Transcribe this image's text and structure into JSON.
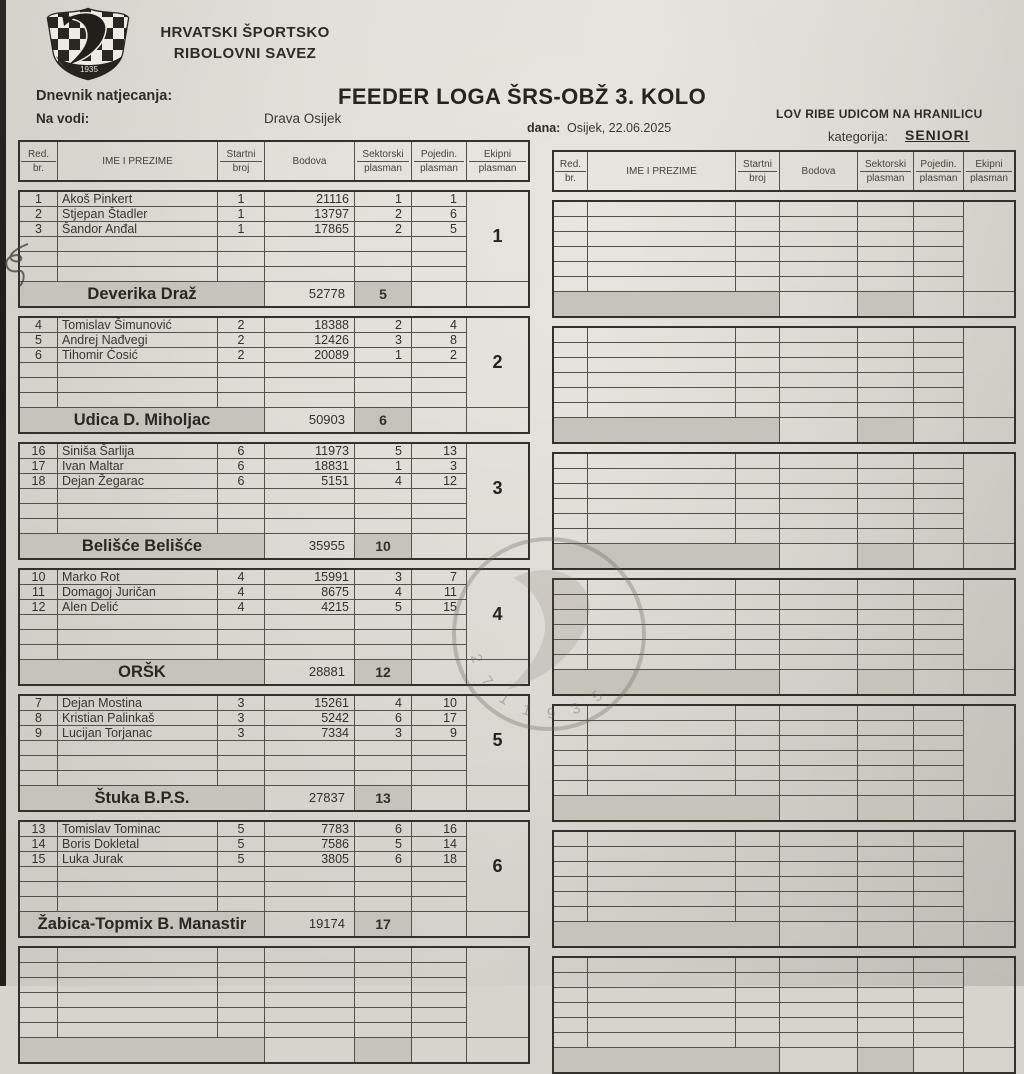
{
  "page": {
    "org_name_line1": "HRVATSKI ŠPORTSKO",
    "org_name_line2": "RIBOLOVNI SAVEZ",
    "journal_label": "Dnevnik natjecanja:",
    "title": "FEEDER LOGA ŠRS-OBŽ 3. KOLO",
    "water_label": "Na vodi:",
    "water_value": "Drava Osijek",
    "date_label": "dana:",
    "date_value": "Osijek, 22.06.2025",
    "discipline": "LOV RIBE UDICOM NA HRANILICU",
    "category_label": "kategorija:",
    "category_value": "SENIORI",
    "logo_year": "1935"
  },
  "colors": {
    "paper": "#dedbd4",
    "shaded_cell": "#c6c3bb",
    "grid_line": "#55504a",
    "ink": "#33302b"
  },
  "table": {
    "columns": [
      {
        "key": "red-br",
        "l1": "Red.",
        "l2": "br."
      },
      {
        "key": "ime-i-prezime",
        "l1": "IME I PREZIME",
        "l2": ""
      },
      {
        "key": "startni-broj",
        "l1": "Startni",
        "l2": "broj"
      },
      {
        "key": "bodova",
        "l1": "Bodova",
        "l2": ""
      },
      {
        "key": "sektorski-plasman",
        "l1": "Sektorski",
        "l2": "plasman"
      },
      {
        "key": "pojedin-plasman",
        "l1": "Pojedin.",
        "l2": "plasman"
      },
      {
        "key": "ekipni-plasman",
        "l1": "Ekipni",
        "l2": "plasman"
      }
    ]
  },
  "teams": [
    {
      "team_rank": "1",
      "team_name": "Deverika Draž",
      "team_points": "52778",
      "team_sector": "5",
      "rows": [
        {
          "no": "1",
          "name": "Akoš Pinkert",
          "start": "1",
          "points": "21116",
          "sector": "1",
          "individual": "1"
        },
        {
          "no": "2",
          "name": "Stjepan Štadler",
          "start": "1",
          "points": "13797",
          "sector": "2",
          "individual": "6"
        },
        {
          "no": "3",
          "name": "Šandor Anđal",
          "start": "1",
          "points": "17865",
          "sector": "2",
          "individual": "5"
        }
      ]
    },
    {
      "team_rank": "2",
      "team_name": "Udica D. Miholjac",
      "team_points": "50903",
      "team_sector": "6",
      "rows": [
        {
          "no": "4",
          "name": "Tomislav Šimunović",
          "start": "2",
          "points": "18388",
          "sector": "2",
          "individual": "4"
        },
        {
          "no": "5",
          "name": "Andrej Nađvegi",
          "start": "2",
          "points": "12426",
          "sector": "3",
          "individual": "8"
        },
        {
          "no": "6",
          "name": "Tihomir Ćosić",
          "start": "2",
          "points": "20089",
          "sector": "1",
          "individual": "2"
        }
      ]
    },
    {
      "team_rank": "3",
      "team_name": "Belišće Belišće",
      "team_points": "35955",
      "team_sector": "10",
      "rows": [
        {
          "no": "16",
          "name": "Siniša Šarlija",
          "start": "6",
          "points": "11973",
          "sector": "5",
          "individual": "13"
        },
        {
          "no": "17",
          "name": "Ivan Maltar",
          "start": "6",
          "points": "18831",
          "sector": "1",
          "individual": "3"
        },
        {
          "no": "18",
          "name": "Dejan Žegarac",
          "start": "6",
          "points": "5151",
          "sector": "4",
          "individual": "12"
        }
      ]
    },
    {
      "team_rank": "4",
      "team_name": "ORŠK",
      "team_points": "28881",
      "team_sector": "12",
      "rows": [
        {
          "no": "10",
          "name": "Marko Rot",
          "start": "4",
          "points": "15991",
          "sector": "3",
          "individual": "7"
        },
        {
          "no": "11",
          "name": "Domagoj Juričan",
          "start": "4",
          "points": "8675",
          "sector": "4",
          "individual": "11"
        },
        {
          "no": "12",
          "name": "Alen Delić",
          "start": "4",
          "points": "4215",
          "sector": "5",
          "individual": "15"
        }
      ]
    },
    {
      "team_rank": "5",
      "team_name": "Štuka B.P.S.",
      "team_points": "27837",
      "team_sector": "13",
      "rows": [
        {
          "no": "7",
          "name": "Dejan Mostina",
          "start": "3",
          "points": "15261",
          "sector": "4",
          "individual": "10"
        },
        {
          "no": "8",
          "name": "Kristian Palinkaš",
          "start": "3",
          "points": "5242",
          "sector": "6",
          "individual": "17"
        },
        {
          "no": "9",
          "name": "Lucijan Torjanac",
          "start": "3",
          "points": "7334",
          "sector": "3",
          "individual": "9"
        }
      ]
    },
    {
      "team_rank": "6",
      "team_name": "Žabica-Topmix B. Manastir",
      "team_points": "19174",
      "team_sector": "17",
      "rows": [
        {
          "no": "13",
          "name": "Tomislav Tominac",
          "start": "5",
          "points": "7783",
          "sector": "6",
          "individual": "16"
        },
        {
          "no": "14",
          "name": "Boris Dokletal",
          "start": "5",
          "points": "7586",
          "sector": "5",
          "individual": "14"
        },
        {
          "no": "15",
          "name": "Luka Jurak",
          "start": "5",
          "points": "3805",
          "sector": "6",
          "individual": "18"
        }
      ]
    }
  ]
}
